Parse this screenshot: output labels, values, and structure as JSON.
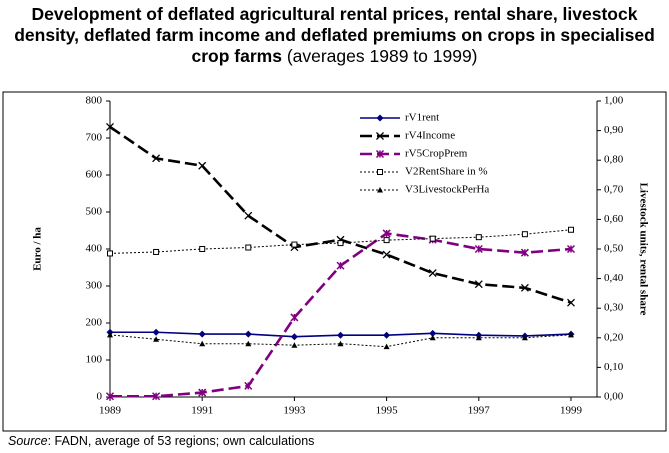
{
  "chart_data": {
    "type": "line",
    "title": "Development of deflated agricultural rental prices, rental share, livestock density, deflated farm income and deflated premiums on crops in specialised crop farms",
    "subtitle": "(averages 1989 to 1999)",
    "ylabel": "Euro / ha",
    "y2label": "Livestock units, rental share",
    "source_label": "Source",
    "source_text": ": FADN, average of 53 regions; own calculations",
    "x": [
      1989,
      1990,
      1991,
      1992,
      1993,
      1994,
      1995,
      1996,
      1997,
      1998,
      1999
    ],
    "xlim": [
      1989,
      1999
    ],
    "xticks": [
      1989,
      1991,
      1993,
      1995,
      1997,
      1999
    ],
    "ylim": [
      0,
      800
    ],
    "yticks": [
      0,
      100,
      200,
      300,
      400,
      500,
      600,
      700,
      800
    ],
    "y2lim": [
      0,
      1
    ],
    "y2ticks": [
      {
        "value": 0,
        "label": "0,00"
      },
      {
        "value": 0.1,
        "label": "0,10"
      },
      {
        "value": 0.2,
        "label": "0,20"
      },
      {
        "value": 0.3,
        "label": "0,30"
      },
      {
        "value": 0.4,
        "label": "0,40"
      },
      {
        "value": 0.5,
        "label": "0,50"
      },
      {
        "value": 0.6,
        "label": "0,60"
      },
      {
        "value": 0.7,
        "label": "0,70"
      },
      {
        "value": 0.8,
        "label": "0,80"
      },
      {
        "value": 0.9,
        "label": "0,90"
      },
      {
        "value": 1,
        "label": "1,00"
      }
    ],
    "series": [
      {
        "name": "rV1rent",
        "color": "#000080",
        "dash": "solid",
        "marker": "diamond",
        "values": [
          175,
          175,
          170,
          170,
          163,
          167,
          167,
          172,
          167,
          165,
          170
        ]
      },
      {
        "name": "rV4Income",
        "color": "#000000",
        "dash": "long",
        "marker": "x",
        "values": [
          730,
          645,
          625,
          490,
          405,
          425,
          385,
          335,
          305,
          295,
          255
        ]
      },
      {
        "name": "rV5CropPrem",
        "color": "#800080",
        "dash": "long",
        "marker": "asterisk",
        "values": [
          2,
          2,
          12,
          30,
          215,
          355,
          442,
          425,
          400,
          390,
          400
        ]
      },
      {
        "name": "V2RentShare in %",
        "color": "#000000",
        "dash": "dotted",
        "marker": "square",
        "axis": "y2",
        "values": [
          0.485,
          0.49,
          0.5,
          0.505,
          0.515,
          0.52,
          0.53,
          0.535,
          0.54,
          0.55,
          0.565
        ]
      },
      {
        "name": "V3LivestockPerHa",
        "color": "#000000",
        "dash": "dotted",
        "marker": "triangle",
        "axis": "y2",
        "values": [
          0.21,
          0.195,
          0.18,
          0.18,
          0.175,
          0.18,
          0.17,
          0.2,
          0.2,
          0.2,
          0.21
        ]
      }
    ]
  }
}
